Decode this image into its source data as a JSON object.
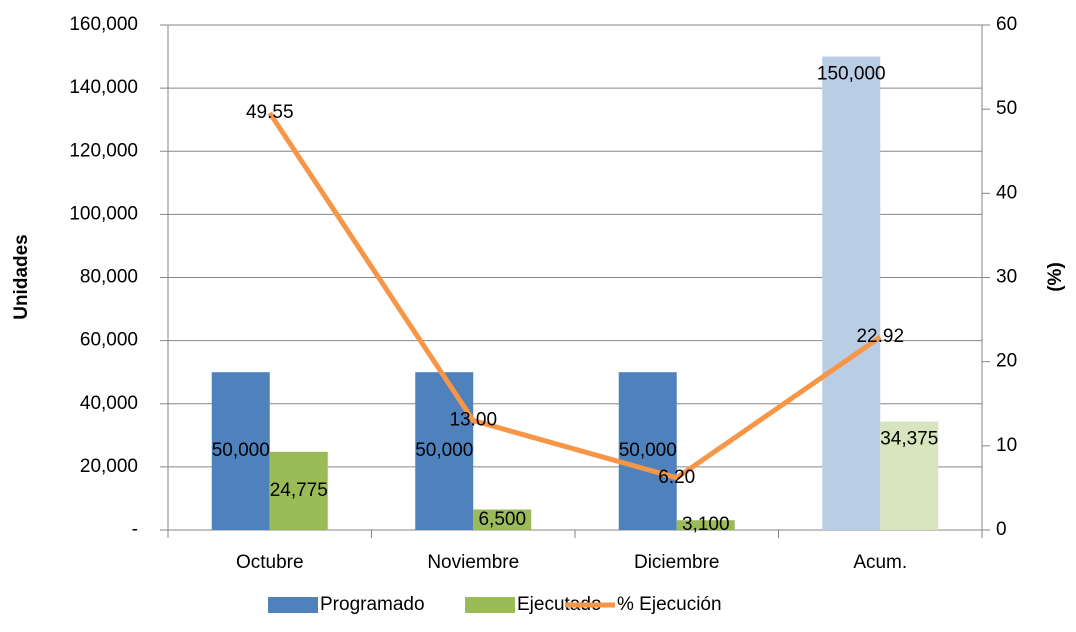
{
  "chart_data": {
    "type": "bar_line",
    "categories": [
      "Octubre",
      "Noviembre",
      "Diciembre",
      "Acum."
    ],
    "y_label": "Unidades",
    "y2_label": "(%)",
    "ylim": [
      0,
      160000
    ],
    "yticks": [
      {
        "value": 0,
        "label": "-"
      },
      {
        "value": 20000,
        "label": "20,000"
      },
      {
        "value": 40000,
        "label": "40,000"
      },
      {
        "value": 60000,
        "label": "60,000"
      },
      {
        "value": 80000,
        "label": "80,000"
      },
      {
        "value": 100000,
        "label": "100,000"
      },
      {
        "value": 120000,
        "label": "120,000"
      },
      {
        "value": 140000,
        "label": "140,000"
      },
      {
        "value": 160000,
        "label": "160,000"
      }
    ],
    "y2lim": [
      0,
      60
    ],
    "y2ticks": [
      0,
      10,
      20,
      30,
      40,
      50,
      60
    ],
    "grid": true,
    "legend": "bottom",
    "series": [
      {
        "name": "Programado",
        "type": "bar",
        "color": "#4f81bd",
        "point_colors": [
          "#4f81bd",
          "#4f81bd",
          "#4f81bd",
          "#b9cde5"
        ],
        "values": [
          50000,
          50000,
          50000,
          150000
        ],
        "value_labels": [
          "50,000",
          "50,000",
          "50,000",
          "150,000"
        ]
      },
      {
        "name": "Ejecutado",
        "type": "bar",
        "color": "#9bbb59",
        "point_colors": [
          "#9bbb59",
          "#9bbb59",
          "#9bbb59",
          "#d7e4bd"
        ],
        "values": [
          24775,
          6500,
          3100,
          34375
        ],
        "value_labels": [
          "24,775",
          "6,500",
          "3,100",
          "34,375"
        ]
      },
      {
        "name": "% Ejecución",
        "type": "line",
        "axis": "y2",
        "color": "#f79646",
        "values": [
          49.55,
          13.0,
          6.2,
          22.92
        ],
        "value_labels": [
          "49.55",
          "13.00",
          "6.20",
          "22.92"
        ]
      }
    ]
  }
}
